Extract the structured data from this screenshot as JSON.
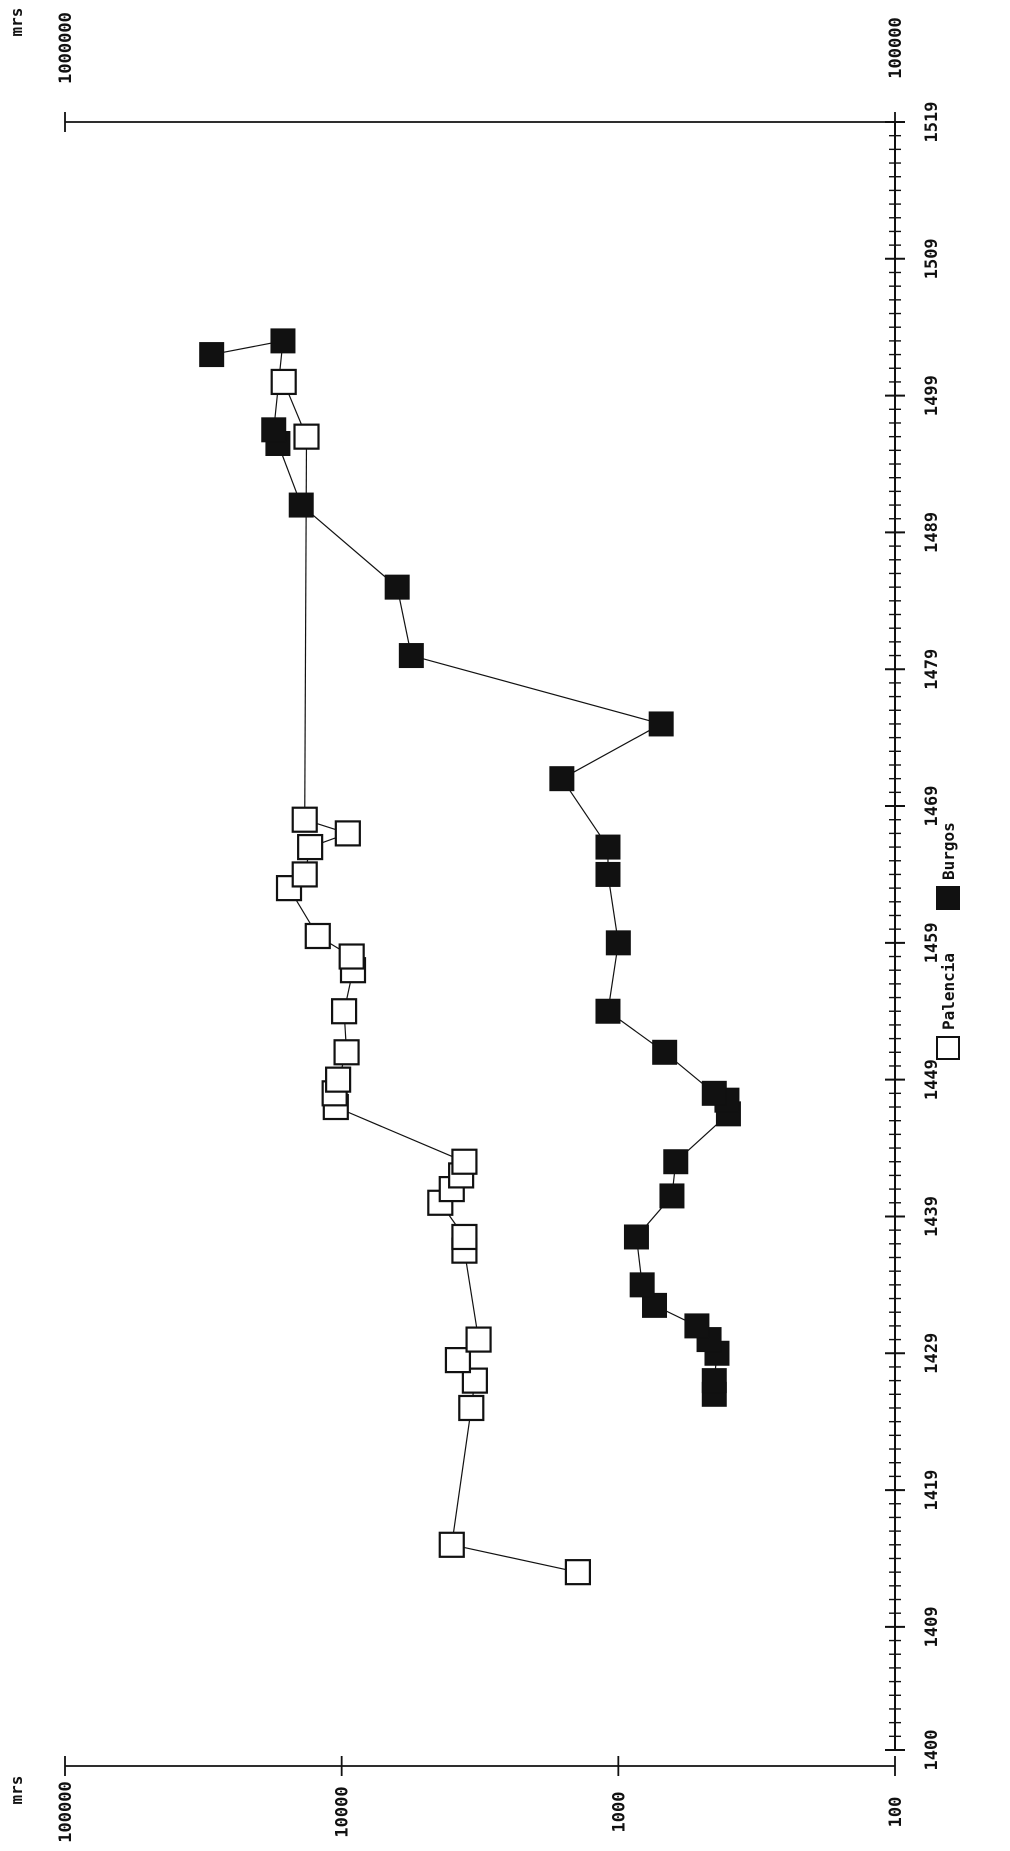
{
  "chart_data": {
    "type": "scatter",
    "title": "",
    "orientation": "rotated-90-ccw",
    "x_axis": {
      "range": [
        1400,
        1519
      ],
      "tick_labels": [
        "1400",
        "1409",
        "1419",
        "1429",
        "1439",
        "1449",
        "1459",
        "1469",
        "1479",
        "1489",
        "1499",
        "1509",
        "1519"
      ]
    },
    "y_axis": {
      "scale": "log",
      "range": [
        100,
        100000
      ],
      "unit": "mrs",
      "tick_labels": [
        "100",
        "1000",
        "10000",
        "100000"
      ]
    },
    "right_axis": {
      "unit": "mrs",
      "tick_labels": [
        "100000",
        "1000000"
      ]
    },
    "legend": {
      "placement": "bottom"
    },
    "series": [
      {
        "name": "Palencia",
        "marker": "open-square",
        "color": "#ffffff",
        "points": [
          {
            "x": 1413,
            "y": 1400
          },
          {
            "x": 1415,
            "y": 4000
          },
          {
            "x": 1425,
            "y": 3400
          },
          {
            "x": 1427,
            "y": 3300
          },
          {
            "x": 1428.5,
            "y": 3800
          },
          {
            "x": 1430,
            "y": 3200
          },
          {
            "x": 1436.5,
            "y": 3600
          },
          {
            "x": 1437.5,
            "y": 3600
          },
          {
            "x": 1440,
            "y": 4400
          },
          {
            "x": 1441,
            "y": 4000
          },
          {
            "x": 1442,
            "y": 3700
          },
          {
            "x": 1443,
            "y": 3600
          },
          {
            "x": 1447,
            "y": 10500
          },
          {
            "x": 1448,
            "y": 10600
          },
          {
            "x": 1449,
            "y": 10300
          },
          {
            "x": 1451,
            "y": 9600
          },
          {
            "x": 1454,
            "y": 9800
          },
          {
            "x": 1457,
            "y": 9100
          },
          {
            "x": 1458,
            "y": 9200
          },
          {
            "x": 1459.5,
            "y": 12200
          },
          {
            "x": 1463,
            "y": 15500
          },
          {
            "x": 1464,
            "y": 13600
          },
          {
            "x": 1466,
            "y": 13000
          },
          {
            "x": 1467,
            "y": 9500
          },
          {
            "x": 1468,
            "y": 13600
          },
          {
            "x": 1496,
            "y": 13400
          },
          {
            "x": 1500,
            "y": 16200
          }
        ]
      },
      {
        "name": "Burgos",
        "marker": "filled-square",
        "color": "#111111",
        "points": [
          {
            "x": 1413.5,
            "y": null
          },
          {
            "x": 1426,
            "y": 450
          },
          {
            "x": 1427,
            "y": 450
          },
          {
            "x": 1429,
            "y": 440
          },
          {
            "x": 1430,
            "y": 470
          },
          {
            "x": 1431,
            "y": 520
          },
          {
            "x": 1432.5,
            "y": 740
          },
          {
            "x": 1434,
            "y": 820
          },
          {
            "x": 1437.5,
            "y": 860
          },
          {
            "x": 1440.5,
            "y": 640
          },
          {
            "x": 1443,
            "y": 620
          },
          {
            "x": 1446.5,
            "y": 400
          },
          {
            "x": 1447.5,
            "y": 405
          },
          {
            "x": 1448,
            "y": 450
          },
          {
            "x": 1451,
            "y": 680
          },
          {
            "x": 1454,
            "y": 1090
          },
          {
            "x": 1459,
            "y": 1000
          },
          {
            "x": 1464,
            "y": 1090
          },
          {
            "x": 1466,
            "y": 1090
          },
          {
            "x": 1471,
            "y": 1600
          },
          {
            "x": 1475,
            "y": 700
          },
          {
            "x": 1480,
            "y": 5600
          },
          {
            "x": 1485,
            "y": 6300
          },
          {
            "x": 1491,
            "y": 14000
          },
          {
            "x": 1495.5,
            "y": 17000
          },
          {
            "x": 1496.5,
            "y": 17600
          },
          {
            "x": 1503,
            "y": 16300
          },
          {
            "x": 1502,
            "y": 29500
          }
        ]
      }
    ]
  }
}
